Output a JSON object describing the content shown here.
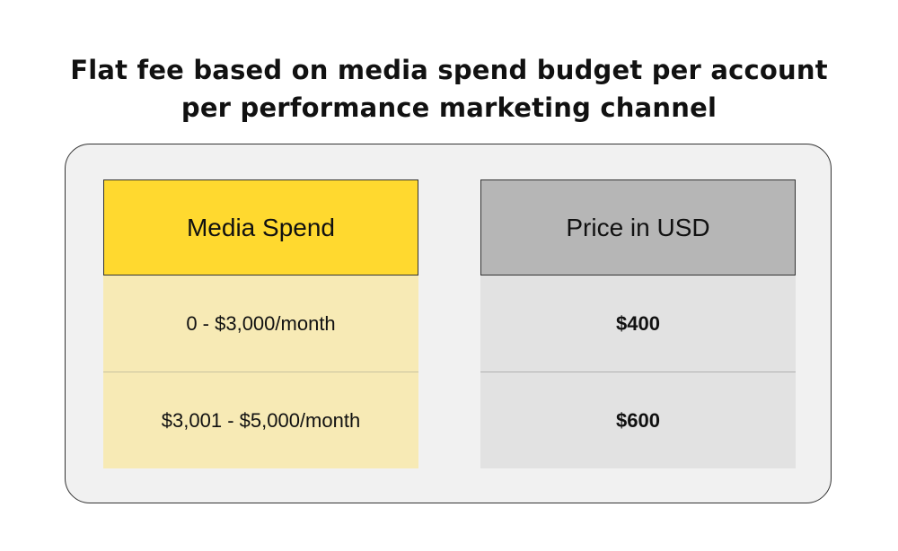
{
  "title": {
    "line1": "Flat fee based on media spend budget per account",
    "line2": "per performance marketing channel"
  },
  "table": {
    "media_spend_header": "Media Spend",
    "price_header": "Price in USD",
    "rows": [
      {
        "media_spend": "0 - $3,000/month",
        "price": "$400"
      },
      {
        "media_spend": "$3,001 - $5,000/month",
        "price": "$600"
      }
    ]
  },
  "colors": {
    "media_header_bg": "#ffd92f",
    "media_row_bg": "#f7eab5",
    "price_header_bg": "#b6b6b6",
    "price_row_bg": "#e2e2e2",
    "panel_bg": "#f1f1f1"
  }
}
